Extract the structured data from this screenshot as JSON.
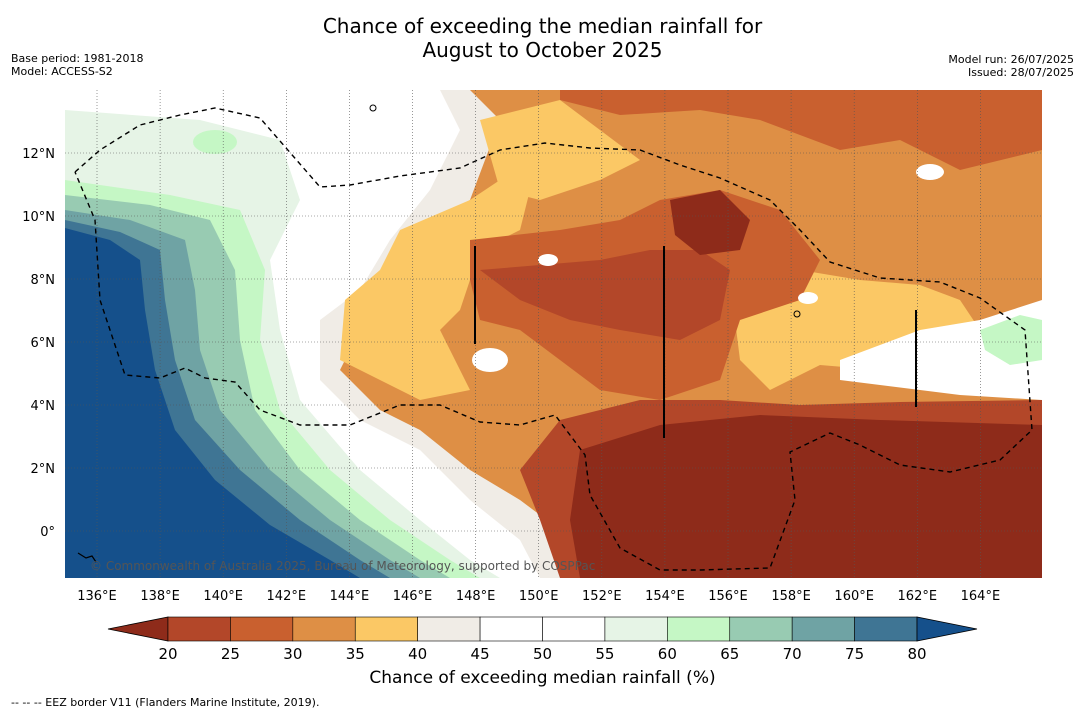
{
  "title_line1": "Chance of exceeding the median rainfall for",
  "title_line2": "August to October 2025",
  "base_period": "Base period: 1981-2018",
  "model": "Model: ACCESS-S2",
  "model_run": "Model run: 26/07/2025",
  "issued": "Issued: 28/07/2025",
  "copyright": "© Commonwealth of Australia 2025, Bureau of Meteorology, supported by COSPPac",
  "footer": "--  --  -- EEZ border V11 (Flanders Marine Institute, 2019).",
  "colorbar": {
    "label": "Chance of exceeding median rainfall (%)",
    "ticks": [
      "20",
      "25",
      "30",
      "35",
      "40",
      "45",
      "50",
      "55",
      "60",
      "65",
      "70",
      "75",
      "80"
    ],
    "colors": [
      "#8e2b1a",
      "#b34729",
      "#c9602f",
      "#de8f45",
      "#fbc865",
      "#f0ece6",
      "#ffffff",
      "#ffffff",
      "#e6f4e6",
      "#c5f7c5",
      "#98cbb2",
      "#6fa3a4",
      "#3f7594",
      "#15508b"
    ]
  },
  "map": {
    "lon_labels": [
      "136°E",
      "138°E",
      "140°E",
      "142°E",
      "144°E",
      "146°E",
      "148°E",
      "150°E",
      "152°E",
      "154°E",
      "156°E",
      "158°E",
      "160°E",
      "162°E",
      "164°E"
    ],
    "lat_labels": [
      "12°N",
      "10°N",
      "8°N",
      "6°N",
      "4°N",
      "2°N",
      "0°"
    ]
  },
  "chart_data": {
    "type": "heatmap",
    "title": "Chance of exceeding the median rainfall for August to October 2025",
    "xlabel": "",
    "ylabel": "",
    "xlim": [
      "135°E",
      "166°E"
    ],
    "ylim": [
      "1.5°S",
      "14°N"
    ],
    "colorbar_label": "Chance of exceeding median rainfall (%)",
    "colorbar_range": [
      20,
      80
    ],
    "regions": [
      {
        "area": "west of ~140°E, south of 10°N",
        "range": "80+"
      },
      {
        "area": "coastal strip ~140–143°E",
        "range": "60-75"
      },
      {
        "area": "~143–148°E",
        "range": "40-55"
      },
      {
        "area": "central 148–156°E, 5–11°N",
        "range": "25-35"
      },
      {
        "area": "south-east, south of 4°N, east of 152°E",
        "range": "<20"
      },
      {
        "area": "north-east around 162–165°E, 4–7°N",
        "range": "45-60"
      }
    ]
  }
}
